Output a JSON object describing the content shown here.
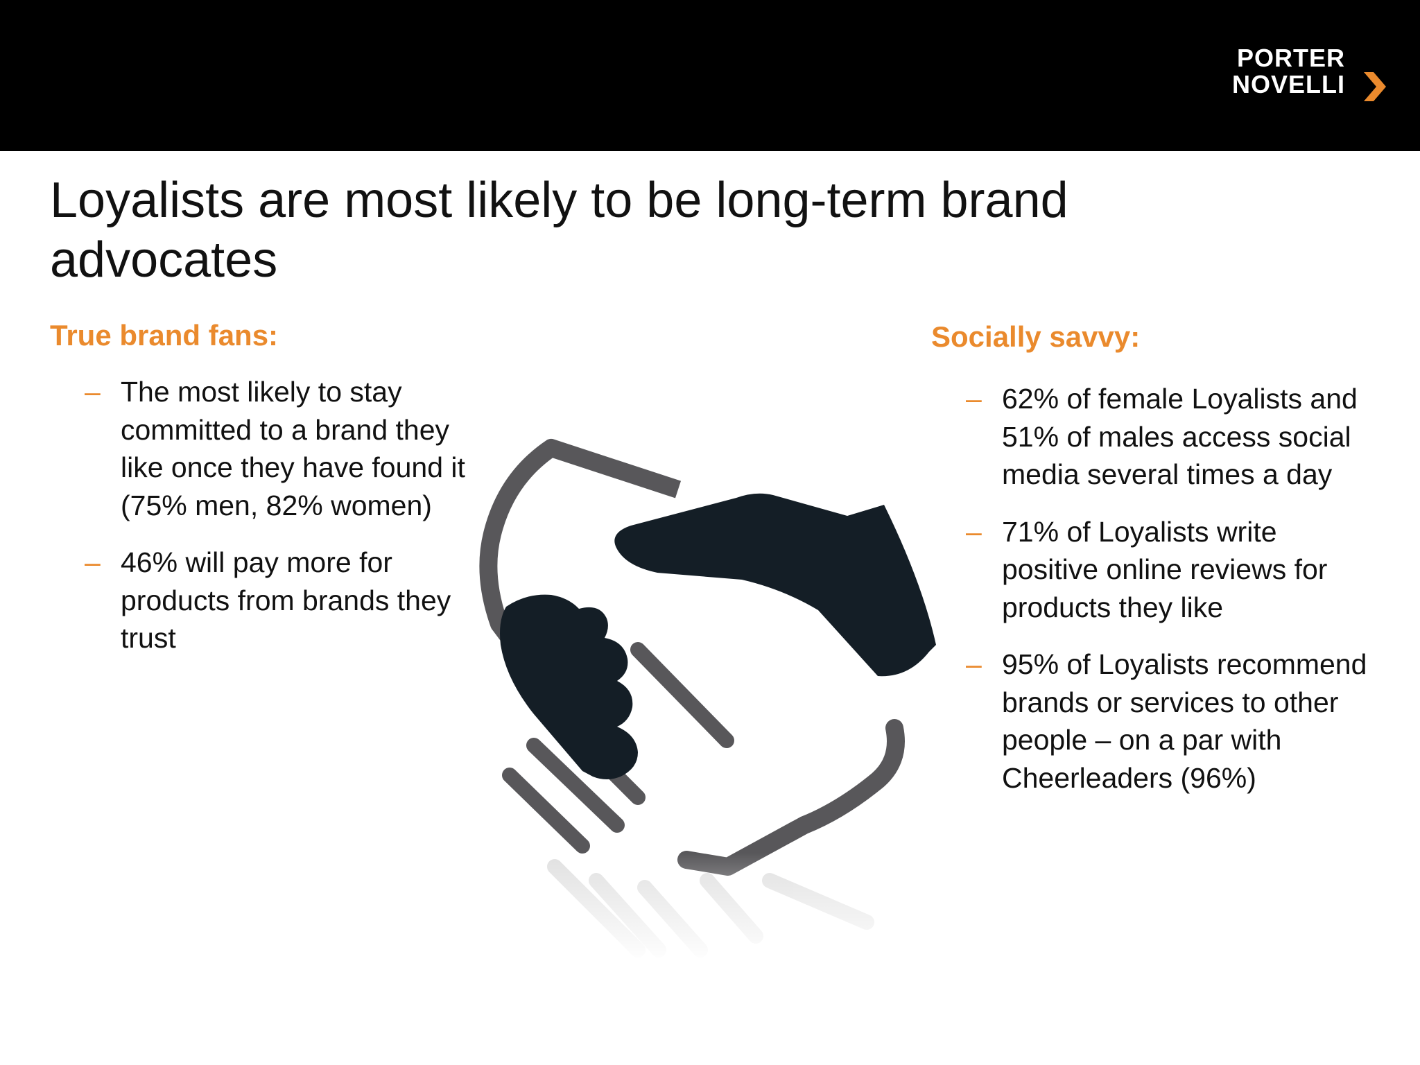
{
  "header": {
    "logo_line1": "PORTER",
    "logo_line2": "NOVELLI",
    "bar_color": "#000000",
    "accent_color": "#ea8a2d"
  },
  "title": "Loyalists are most likely to be long-term brand advocates",
  "left": {
    "heading": "True brand fans:",
    "items": [
      {
        "dash": "–",
        "text": "The most likely to stay committed to a brand they like once they have found it (75% men, 82% women)"
      },
      {
        "dash": "–",
        "text": "46% will pay more for products from brands they trust"
      }
    ]
  },
  "right": {
    "heading": "Socially savvy:",
    "items": [
      {
        "dash": "–",
        "text": "62% of female Loyalists and 51% of males access social media several times a day"
      },
      {
        "dash": "–",
        "text": "71% of Loyalists write positive online reviews for products they like"
      },
      {
        "dash": "–",
        "text": "95% of Loyalists recommend brands or services to other people – on a par with Cheerleaders (96%)"
      }
    ]
  },
  "illustration": {
    "icon": "handshake-icon",
    "dark_color": "#141e26",
    "outline_color": "#58575a"
  }
}
